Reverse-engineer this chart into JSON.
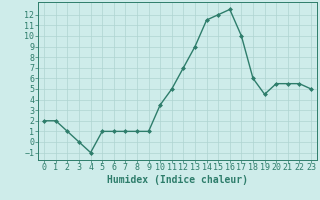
{
  "x": [
    0,
    1,
    2,
    3,
    4,
    5,
    6,
    7,
    8,
    9,
    10,
    11,
    12,
    13,
    14,
    15,
    16,
    17,
    18,
    19,
    20,
    21,
    22,
    23
  ],
  "y": [
    2,
    2,
    1,
    0,
    -1,
    1,
    1,
    1,
    1,
    1,
    3.5,
    5,
    7,
    9,
    11.5,
    12,
    12.5,
    10,
    6,
    4.5,
    5.5,
    5.5,
    5.5,
    5
  ],
  "line_color": "#2e7d6b",
  "marker": "D",
  "marker_size": 2,
  "bg_color": "#ceecea",
  "grid_color": "#afd4d1",
  "xlabel": "Humidex (Indice chaleur)",
  "xlim": [
    -0.5,
    23.5
  ],
  "ylim": [
    -1.7,
    13.2
  ],
  "yticks": [
    -1,
    0,
    1,
    2,
    3,
    4,
    5,
    6,
    7,
    8,
    9,
    10,
    11,
    12
  ],
  "xticks": [
    0,
    1,
    2,
    3,
    4,
    5,
    6,
    7,
    8,
    9,
    10,
    11,
    12,
    13,
    14,
    15,
    16,
    17,
    18,
    19,
    20,
    21,
    22,
    23
  ],
  "axis_color": "#2e7d6b",
  "tick_color": "#2e7d6b",
  "label_color": "#2e7d6b",
  "font_size_label": 7,
  "font_size_tick": 6,
  "line_width": 1.0
}
